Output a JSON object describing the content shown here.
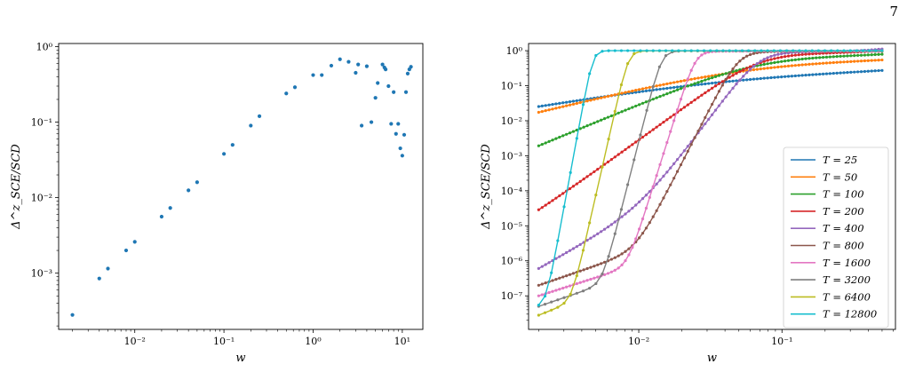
{
  "page_number": "7",
  "chart_data": [
    {
      "type": "scatter",
      "xlabel": "w",
      "ylabel": "Δ^z_SCE/SCD",
      "xscale": "log",
      "yscale": "log",
      "xlim": [
        0.0014,
        17
      ],
      "ylim": [
        0.00018,
        1.1
      ],
      "grid": false,
      "xticks": [
        {
          "v": 0.01,
          "label": "10⁻²"
        },
        {
          "v": 0.1,
          "label": "10⁻¹"
        },
        {
          "v": 1,
          "label": "10⁰"
        },
        {
          "v": 10,
          "label": "10¹"
        }
      ],
      "yticks": [
        {
          "v": 0.001,
          "label": "10⁻³"
        },
        {
          "v": 0.01,
          "label": "10⁻²"
        },
        {
          "v": 0.1,
          "label": "10⁻¹"
        },
        {
          "v": 1,
          "label": "10⁰"
        }
      ],
      "color": "#1f77b4",
      "points": [
        [
          0.002,
          0.00028
        ],
        [
          0.004,
          0.00085
        ],
        [
          0.005,
          0.00115
        ],
        [
          0.008,
          0.002
        ],
        [
          0.01,
          0.0026
        ],
        [
          0.02,
          0.0056
        ],
        [
          0.025,
          0.0073
        ],
        [
          0.04,
          0.0125
        ],
        [
          0.05,
          0.016
        ],
        [
          0.1,
          0.038
        ],
        [
          0.125,
          0.05
        ],
        [
          0.2,
          0.09
        ],
        [
          0.25,
          0.12
        ],
        [
          0.5,
          0.24
        ],
        [
          0.625,
          0.29
        ],
        [
          1.0,
          0.42
        ],
        [
          1.25,
          0.42
        ],
        [
          1.6,
          0.56
        ],
        [
          2.0,
          0.68
        ],
        [
          2.5,
          0.63
        ],
        [
          3.0,
          0.45
        ],
        [
          3.2,
          0.58
        ],
        [
          3.5,
          0.09
        ],
        [
          4.0,
          0.55
        ],
        [
          4.5,
          0.1
        ],
        [
          5.0,
          0.21
        ],
        [
          5.3,
          0.33
        ],
        [
          6.0,
          0.58
        ],
        [
          6.3,
          0.53
        ],
        [
          6.5,
          0.5
        ],
        [
          7.0,
          0.3
        ],
        [
          7.5,
          0.095
        ],
        [
          8.0,
          0.25
        ],
        [
          8.5,
          0.07
        ],
        [
          9.0,
          0.095
        ],
        [
          9.5,
          0.045
        ],
        [
          10.0,
          0.036
        ],
        [
          10.5,
          0.068
        ],
        [
          11.0,
          0.25
        ],
        [
          11.5,
          0.44
        ],
        [
          12.0,
          0.5
        ],
        [
          12.5,
          0.54
        ]
      ]
    },
    {
      "type": "line",
      "xlabel": "w",
      "ylabel": "Δ^z_SCE/SCD",
      "xscale": "log",
      "yscale": "log",
      "xlim": [
        0.0017,
        0.62
      ],
      "ylim": [
        1.1e-08,
        1.6
      ],
      "grid": false,
      "legend_position": "lower-right",
      "xticks": [
        {
          "v": 0.01,
          "label": "10⁻²"
        },
        {
          "v": 0.1,
          "label": "10⁻¹"
        }
      ],
      "yticks": [
        {
          "v": 1e-07,
          "label": "10⁻⁷"
        },
        {
          "v": 1e-06,
          "label": "10⁻⁶"
        },
        {
          "v": 1e-05,
          "label": "10⁻⁵"
        },
        {
          "v": 0.0001,
          "label": "10⁻⁴"
        },
        {
          "v": 0.001,
          "label": "10⁻³"
        },
        {
          "v": 0.01,
          "label": "10⁻²"
        },
        {
          "v": 0.1,
          "label": "10⁻¹"
        },
        {
          "v": 1,
          "label": "10⁰"
        }
      ],
      "series": [
        {
          "name": "T = 25",
          "T": 25,
          "color": "#1f77b4",
          "w0": 0.055,
          "k": 0.7,
          "top": 0.28,
          "a": 0.00029,
          "low_slope": 0.9,
          "dense": true
        },
        {
          "name": "T = 50",
          "T": 50,
          "color": "#ff7f0e",
          "w0": 0.062,
          "k": 1.0,
          "top": 0.55,
          "a": 0.00016,
          "low_slope": 1.05,
          "dense": true
        },
        {
          "name": "T = 100",
          "T": 100,
          "color": "#2ca02c",
          "w0": 0.066,
          "k": 1.7,
          "top": 0.72,
          "a": 4e-05,
          "low_slope": 1.4,
          "dense": true
        },
        {
          "name": "T = 200",
          "T": 200,
          "color": "#d62728",
          "w0": 0.068,
          "k": 3.0,
          "top": 0.85,
          "a": 7e-06,
          "low_slope": 1.8,
          "dense": true
        },
        {
          "name": "T = 400",
          "T": 400,
          "color": "#9467bd",
          "w0": 0.069,
          "k": 5.5,
          "top": 0.92,
          "a": 6e-07,
          "low_slope": 2.3,
          "dense": true
        },
        {
          "name": "T = 800",
          "T": 800,
          "color": "#8c564b",
          "w0": 0.05,
          "k": 8.0,
          "top": 0.95,
          "a": 2e-07,
          "low_slope": 1.4,
          "dense": true
        },
        {
          "name": "T = 1600",
          "T": 1600,
          "color": "#e377c2",
          "w0": 0.025,
          "k": 13.0,
          "top": 0.97,
          "a": 1e-07,
          "low_slope": 1.3,
          "dense": true
        },
        {
          "name": "T = 3200",
          "T": 3200,
          "color": "#7f7f7f",
          "w0": 0.0145,
          "k": 16.0,
          "top": 0.98,
          "a": 5e-08,
          "low_slope": 1.4,
          "dense": false
        },
        {
          "name": "T = 6400",
          "T": 6400,
          "color": "#bcbd22",
          "w0": 0.0085,
          "k": 18.0,
          "top": 0.99,
          "a": 2.8e-08,
          "low_slope": 1.6,
          "dense": false
        },
        {
          "name": "T = 12800",
          "T": 12800,
          "color": "#17becf",
          "w0": 0.0048,
          "k": 22.0,
          "top": 1.0,
          "a": 5e-08,
          "low_slope": 1.3,
          "dense": false
        }
      ]
    }
  ]
}
